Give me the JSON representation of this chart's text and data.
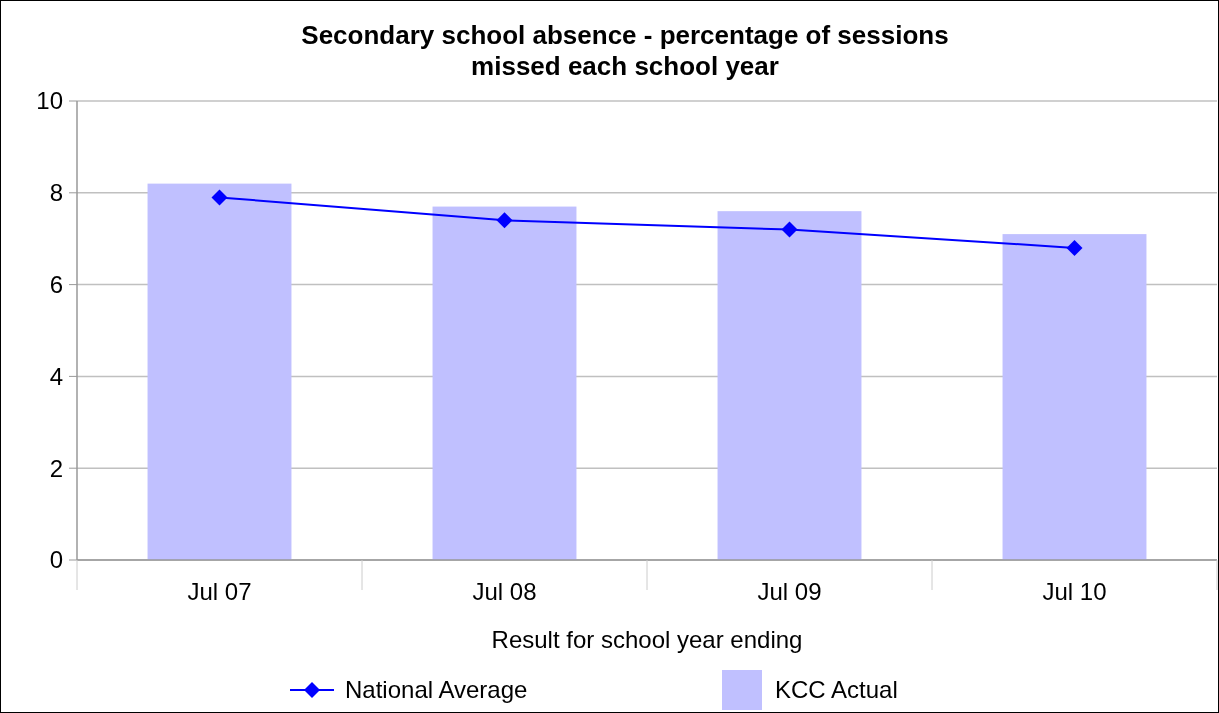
{
  "chart_data": {
    "type": "bar",
    "title": "Secondary school absence - percentage of sessions\nmissed each school year",
    "xlabel": "Result for school year ending",
    "categories": [
      "Jul 07",
      "Jul 08",
      "Jul 09",
      "Jul 10"
    ],
    "series": [
      {
        "name": "National Average",
        "type": "line",
        "color": "#0000ff",
        "values": [
          7.9,
          7.4,
          7.2,
          6.8
        ]
      },
      {
        "name": "KCC Actual",
        "color": "#c0c0ff",
        "values": [
          8.2,
          7.7,
          7.6,
          7.1
        ]
      }
    ],
    "ylim": [
      0,
      10
    ],
    "yticks": [
      0,
      2,
      4,
      6,
      8,
      10
    ],
    "grid": "y",
    "legend": "bottom",
    "marker": "diamond"
  }
}
